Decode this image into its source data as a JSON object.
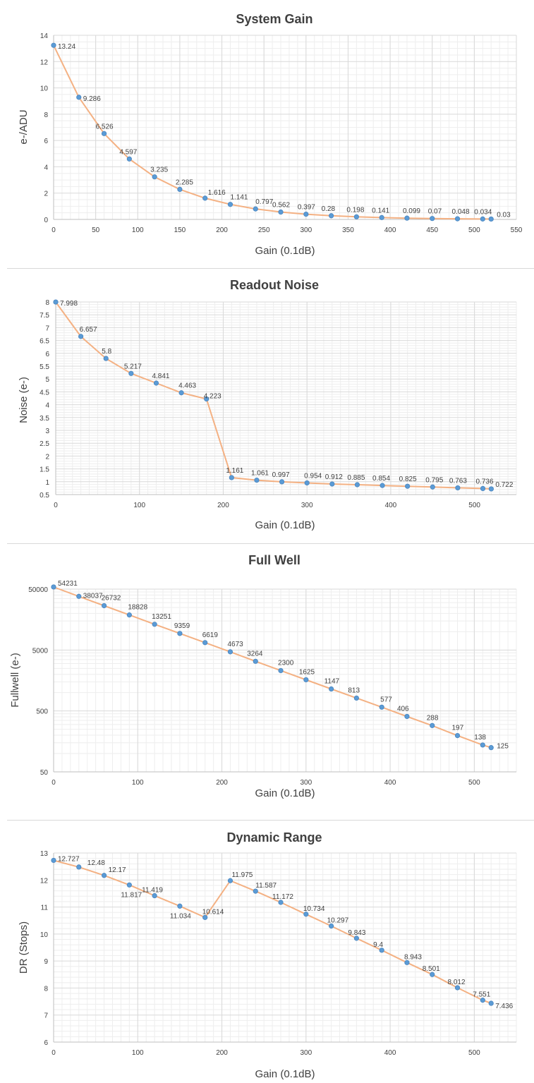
{
  "colors": {
    "line": "#f4b183",
    "marker": "#5b9bd5",
    "grid": "#d9d9d9",
    "text": "#404040"
  },
  "chart_data": [
    {
      "type": "line",
      "title": "System Gain",
      "xlabel": "Gain (0.1dB)",
      "ylabel": "e-/ADU",
      "xlim": [
        0,
        550
      ],
      "ylim": [
        0,
        14
      ],
      "xticks": [
        0,
        50,
        100,
        150,
        200,
        250,
        300,
        350,
        400,
        450,
        500,
        550
      ],
      "yticks": [
        0,
        2,
        4,
        6,
        8,
        10,
        12,
        14
      ],
      "grid": true,
      "y_scale": "linear",
      "x": [
        0,
        30,
        60,
        90,
        120,
        150,
        180,
        210,
        240,
        270,
        300,
        330,
        360,
        390,
        420,
        450,
        480,
        510,
        520
      ],
      "values": [
        13.24,
        9.286,
        6.526,
        4.597,
        3.235,
        2.285,
        1.616,
        1.141,
        0.797,
        0.562,
        0.397,
        0.28,
        0.198,
        0.141,
        0.099,
        0.07,
        0.048,
        0.034,
        0.03
      ],
      "labels": [
        "13.24",
        "9.286",
        "6.526",
        "4.597",
        "3.235",
        "2.285",
        "1.616",
        "1.141",
        "0.797",
        "0.562",
        "0.397",
        "0.28",
        "0.198",
        "0.141",
        "0.099",
        "0.07",
        "0.048",
        "0.034",
        "0.03"
      ]
    },
    {
      "type": "line",
      "title": "Readout Noise",
      "xlabel": "Gain (0.1dB)",
      "ylabel": "Noise (e-)",
      "xlim": [
        0,
        550
      ],
      "ylim": [
        0.5,
        8
      ],
      "xticks": [
        0,
        100,
        200,
        300,
        400,
        500
      ],
      "yticks": [
        0.5,
        1,
        1.5,
        2,
        2.5,
        3,
        3.5,
        4,
        4.5,
        5,
        5.5,
        6,
        6.5,
        7,
        7.5,
        8
      ],
      "grid": true,
      "y_scale": "linear",
      "x": [
        0,
        30,
        60,
        90,
        120,
        150,
        180,
        210,
        240,
        270,
        300,
        330,
        360,
        390,
        420,
        450,
        480,
        510,
        520
      ],
      "values": [
        7.998,
        6.657,
        5.8,
        5.217,
        4.841,
        4.463,
        4.223,
        1.161,
        1.061,
        0.997,
        0.954,
        0.912,
        0.885,
        0.854,
        0.825,
        0.795,
        0.763,
        0.736,
        0.722
      ],
      "labels": [
        "7.998",
        "6.657",
        "5.8",
        "5.217",
        "4.841",
        "4.463",
        "4.223",
        "1.161",
        "1.061",
        "0.997",
        "0.954",
        "0.912",
        "0.885",
        "0.854",
        "0.825",
        "0.795",
        "0.763",
        "0.736",
        "0.722"
      ]
    },
    {
      "type": "line",
      "title": "Full Well",
      "xlabel": "Gain (0.1dB)",
      "ylabel": "Fullwell (e-)",
      "xlim": [
        0,
        550
      ],
      "ylim": [
        50,
        50000
      ],
      "xticks": [
        0,
        100,
        200,
        300,
        400,
        500
      ],
      "yticks": [
        50,
        500,
        5000,
        50000
      ],
      "grid": true,
      "y_scale": "log",
      "x": [
        0,
        30,
        60,
        90,
        120,
        150,
        180,
        210,
        240,
        270,
        300,
        330,
        360,
        390,
        420,
        450,
        480,
        510,
        520
      ],
      "values": [
        54231,
        38037,
        26732,
        18828,
        13251,
        9359,
        6619,
        4673,
        3264,
        2300,
        1625,
        1147,
        813,
        577,
        406,
        288,
        197,
        138,
        125
      ],
      "labels": [
        "54231",
        "38037",
        "26732",
        "18828",
        "13251",
        "9359",
        "6619",
        "4673",
        "3264",
        "2300",
        "1625",
        "1147",
        "813",
        "577",
        "406",
        "288",
        "197",
        "138",
        "125"
      ]
    },
    {
      "type": "line",
      "title": "Dynamic Range",
      "xlabel": "Gain (0.1dB)",
      "ylabel": "DR (Stops)",
      "xlim": [
        0,
        550
      ],
      "ylim": [
        6,
        13
      ],
      "xticks": [
        0,
        100,
        200,
        300,
        400,
        500
      ],
      "yticks": [
        6,
        7,
        8,
        9,
        10,
        11,
        12,
        13
      ],
      "grid": true,
      "y_scale": "linear",
      "x": [
        0,
        30,
        60,
        90,
        120,
        150,
        180,
        210,
        240,
        270,
        300,
        330,
        360,
        390,
        420,
        450,
        480,
        510,
        520
      ],
      "values": [
        12.727,
        12.48,
        12.17,
        11.817,
        11.419,
        11.034,
        10.614,
        11.975,
        11.587,
        11.172,
        10.734,
        10.297,
        9.843,
        9.4,
        8.943,
        8.501,
        8.012,
        7.551,
        7.436
      ],
      "labels": [
        "12.727",
        "12.48",
        "12.17",
        "11.817",
        "11.419",
        "11.034",
        "10.614",
        "11.975",
        "11.587",
        "11.172",
        "10.734",
        "10.297",
        "9.843",
        "9.4",
        "8.943",
        "8.501",
        "8.012",
        "7.551",
        "7.436"
      ]
    }
  ]
}
